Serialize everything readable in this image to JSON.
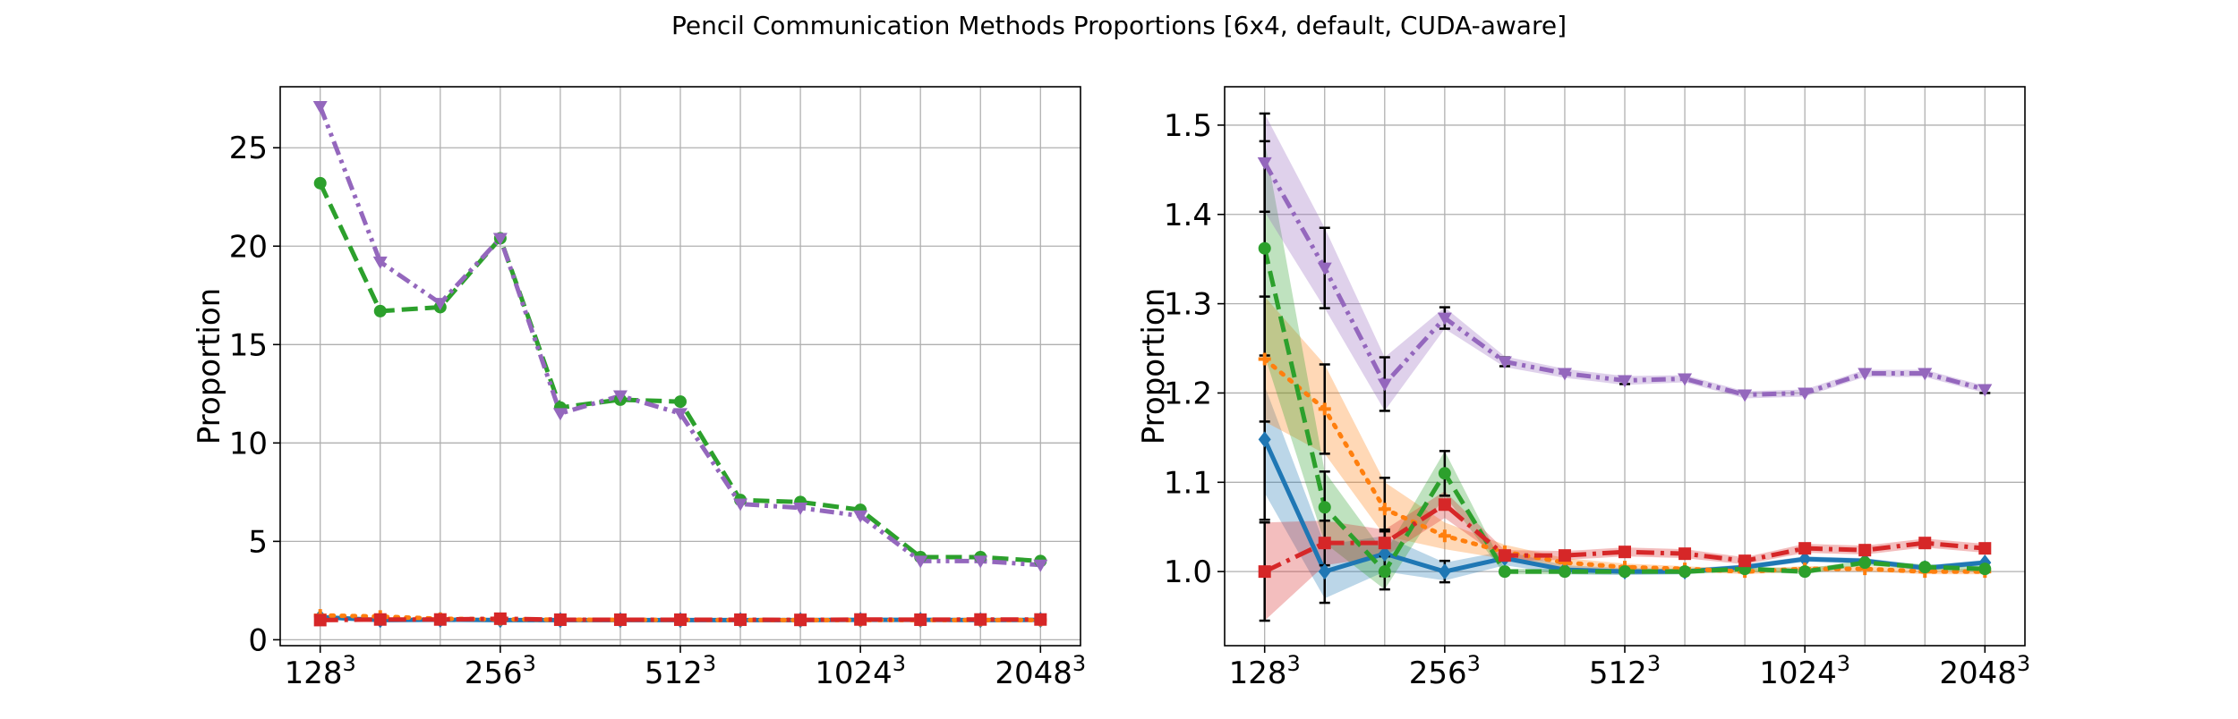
{
  "figure_title": "Pencil Communication Methods Proportions [6x4, default, CUDA-aware]",
  "colors": {
    "blue": "#1f77b4",
    "orange": "#ff7f0e",
    "green": "#2ca02c",
    "red": "#d62728",
    "purple": "#9467bd",
    "grid": "#b0b0b0"
  },
  "chart_data": [
    {
      "type": "line",
      "ylabel": "Proportion",
      "xlabel": "",
      "grid": true,
      "x_positions": [
        0,
        1,
        2,
        3,
        4,
        5,
        6,
        7,
        8,
        9,
        10,
        11,
        12
      ],
      "xticks": [
        {
          "pos": 0,
          "base": "128",
          "exp": "3"
        },
        {
          "pos": 3,
          "base": "256",
          "exp": "3"
        },
        {
          "pos": 6,
          "base": "512",
          "exp": "3"
        },
        {
          "pos": 9,
          "base": "1024",
          "exp": "3"
        },
        {
          "pos": 12,
          "base": "2048",
          "exp": "3"
        }
      ],
      "ylim": [
        -0.3,
        28.1
      ],
      "yticks": [
        0,
        5,
        10,
        15,
        20,
        25
      ],
      "series": [
        {
          "color": "blue",
          "dash": "solid",
          "marker": "diamond",
          "values": [
            1.15,
            1.0,
            1.02,
            1.0,
            1.0,
            1.0,
            1.0,
            1.0,
            1.0,
            1.01,
            1.01,
            1.0,
            1.01
          ]
        },
        {
          "color": "orange",
          "dash": "dotted",
          "marker": "plus",
          "values": [
            1.24,
            1.18,
            1.07,
            1.04,
            1.02,
            1.01,
            1.01,
            1.0,
            1.0,
            1.0,
            1.0,
            1.0,
            1.0
          ]
        },
        {
          "color": "green",
          "dash": "dashed",
          "marker": "circle",
          "values": [
            23.2,
            16.7,
            16.9,
            20.4,
            11.8,
            12.2,
            12.1,
            7.1,
            7.0,
            6.6,
            4.2,
            4.2,
            4.0
          ]
        },
        {
          "color": "red",
          "dash": "dashdot",
          "marker": "square",
          "values": [
            1.0,
            1.03,
            1.03,
            1.07,
            1.02,
            1.02,
            1.02,
            1.02,
            1.01,
            1.03,
            1.02,
            1.03,
            1.03
          ]
        },
        {
          "color": "purple",
          "dash": "dashdotdot",
          "marker": "triangle-down",
          "values": [
            27.1,
            19.2,
            17.1,
            20.4,
            11.5,
            12.4,
            11.5,
            6.9,
            6.7,
            6.3,
            4.0,
            4.0,
            3.8
          ]
        }
      ]
    },
    {
      "type": "line",
      "ylabel": "Proportion",
      "xlabel": "",
      "grid": true,
      "x_positions": [
        0,
        1,
        2,
        3,
        4,
        5,
        6,
        7,
        8,
        9,
        10,
        11,
        12
      ],
      "xticks": [
        {
          "pos": 0,
          "base": "128",
          "exp": "3"
        },
        {
          "pos": 3,
          "base": "256",
          "exp": "3"
        },
        {
          "pos": 6,
          "base": "512",
          "exp": "3"
        },
        {
          "pos": 9,
          "base": "1024",
          "exp": "3"
        },
        {
          "pos": 12,
          "base": "2048",
          "exp": "3"
        }
      ],
      "ylim": [
        0.917,
        1.543
      ],
      "yticks": [
        1.0,
        1.1,
        1.2,
        1.3,
        1.4,
        1.5
      ],
      "ytick_labels": [
        "1.0",
        "1.1",
        "1.2",
        "1.3",
        "1.4",
        "1.5"
      ],
      "series": [
        {
          "color": "blue",
          "dash": "solid",
          "marker": "diamond",
          "values": [
            1.148,
            1.0,
            1.02,
            1.0,
            1.015,
            1.002,
            1.0,
            1.0,
            1.005,
            1.014,
            1.012,
            1.004,
            1.01
          ],
          "band": [
            0.06,
            0.03,
            0.02,
            0.01,
            0.008,
            0.005,
            0.004,
            0.003,
            0.003,
            0.003,
            0.003,
            0.003,
            0.003
          ],
          "err": [
            0.09,
            0.035,
            0.025,
            0.012,
            0,
            0,
            0,
            0,
            0,
            0,
            0,
            0,
            0
          ]
        },
        {
          "color": "orange",
          "dash": "dotted",
          "marker": "plus",
          "values": [
            1.238,
            1.182,
            1.07,
            1.04,
            1.022,
            1.01,
            1.005,
            1.003,
            1.0,
            1.003,
            1.003,
            1.0,
            1.0
          ],
          "band": [
            0.07,
            0.05,
            0.03,
            0.015,
            0.008,
            0.005,
            0.004,
            0.003,
            0.003,
            0.003,
            0.003,
            0.003,
            0.003
          ],
          "err": [
            0.07,
            0.05,
            0.035,
            0,
            0,
            0,
            0,
            0,
            0,
            0,
            0,
            0,
            0
          ]
        },
        {
          "color": "green",
          "dash": "dashed",
          "marker": "circle",
          "values": [
            1.362,
            1.072,
            1.0,
            1.11,
            1.0,
            1.0,
            1.0,
            1.0,
            1.003,
            1.0,
            1.01,
            1.005,
            1.003
          ],
          "band": [
            0.12,
            0.04,
            0.02,
            0.025,
            0.003,
            0.003,
            0.003,
            0.003,
            0.003,
            0.003,
            0.003,
            0.003,
            0.003
          ],
          "err": [
            0.12,
            0.04,
            0.02,
            0.025,
            0,
            0,
            0,
            0,
            0,
            0,
            0,
            0,
            0
          ]
        },
        {
          "color": "red",
          "dash": "dashdot",
          "marker": "square",
          "values": [
            1.0,
            1.032,
            1.032,
            1.075,
            1.018,
            1.018,
            1.022,
            1.02,
            1.012,
            1.026,
            1.024,
            1.032,
            1.026
          ],
          "band": [
            0.055,
            0.025,
            0.015,
            0.015,
            0.006,
            0.005,
            0.005,
            0.005,
            0.004,
            0.005,
            0.005,
            0.005,
            0.005
          ],
          "err": [
            0.055,
            0.025,
            0.015,
            0,
            0,
            0,
            0,
            0,
            0,
            0,
            0,
            0,
            0
          ]
        },
        {
          "color": "purple",
          "dash": "dashdotdot",
          "marker": "triangle-down",
          "values": [
            1.458,
            1.34,
            1.21,
            1.284,
            1.235,
            1.222,
            1.214,
            1.216,
            1.198,
            1.2,
            1.222,
            1.222,
            1.204
          ],
          "band": [
            0.055,
            0.045,
            0.03,
            0.012,
            0.006,
            0.005,
            0.005,
            0.004,
            0.004,
            0.004,
            0.004,
            0.004,
            0.004
          ],
          "err": [
            0.055,
            0.045,
            0.03,
            0.012,
            0.005,
            0,
            0.004,
            0,
            0,
            0,
            0,
            0,
            0.004
          ]
        }
      ]
    }
  ]
}
